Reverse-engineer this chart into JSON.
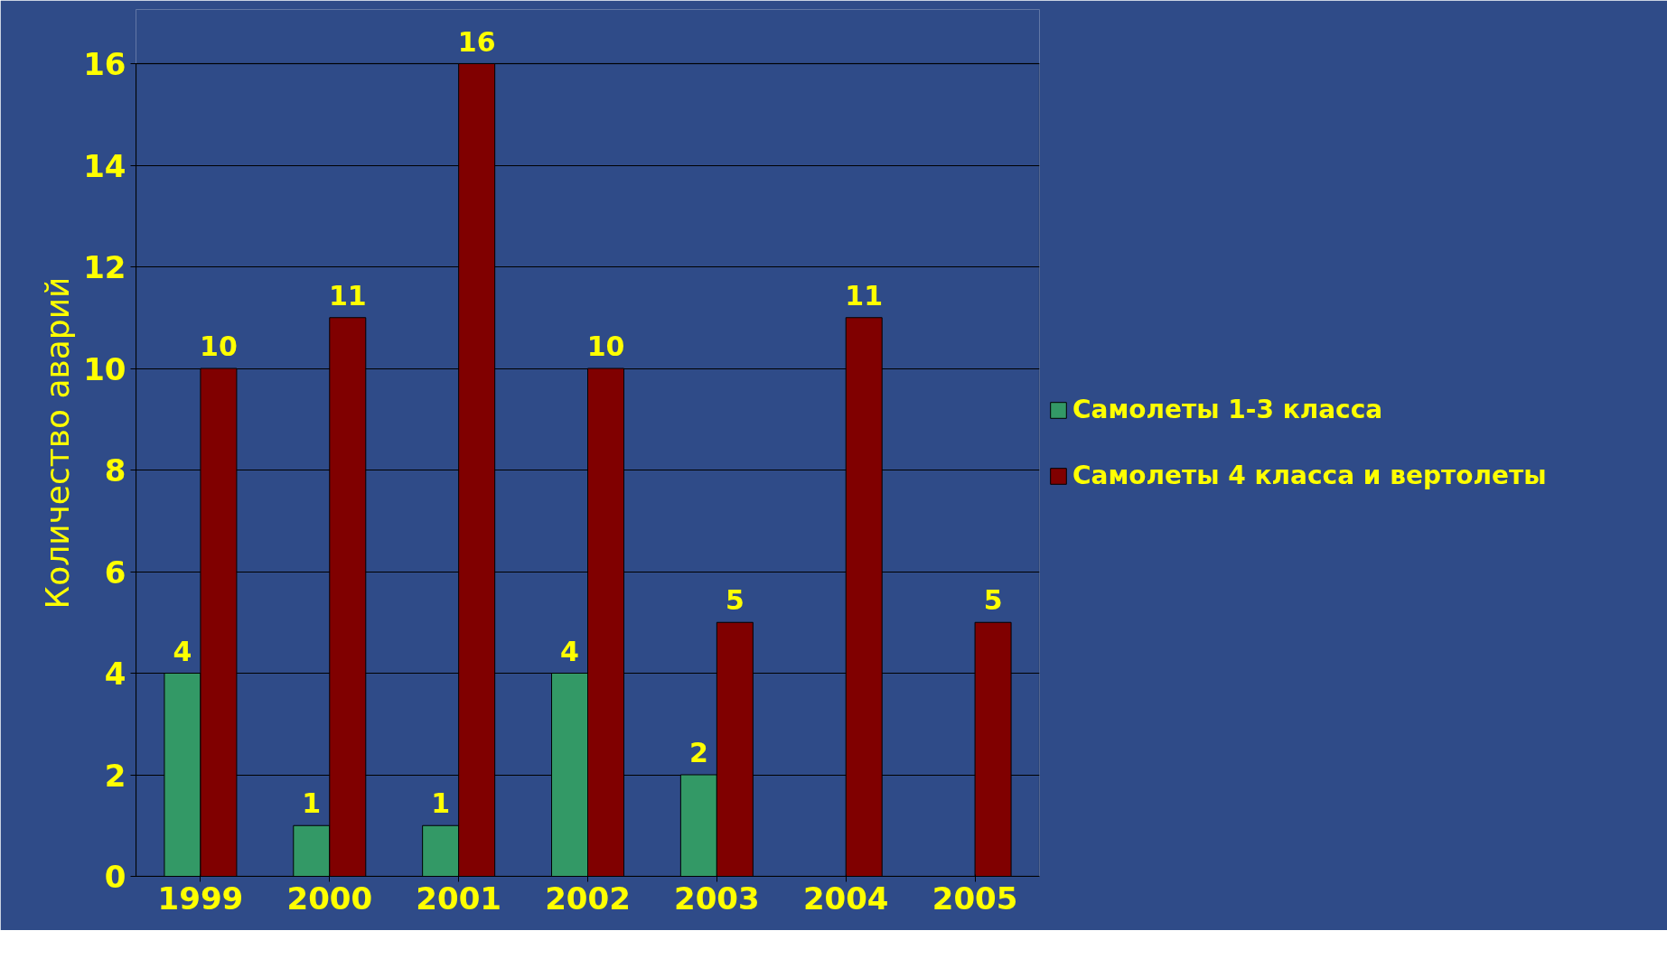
{
  "chart_data": {
    "type": "bar",
    "ylabel": "Количество аварий",
    "categories": [
      "1999",
      "2000",
      "2001",
      "2002",
      "2003",
      "2004",
      "2005"
    ],
    "series": [
      {
        "name": "Самолеты 1-3 класса",
        "color": "#339966",
        "values": [
          4,
          1,
          1,
          4,
          2,
          null,
          null
        ]
      },
      {
        "name": "Самолеты 4 класса и вертолеты",
        "color": "#800000",
        "values": [
          10,
          11,
          16,
          10,
          5,
          11,
          5
        ]
      }
    ],
    "ylim": [
      0,
      16
    ],
    "yticks": [
      0,
      2,
      4,
      6,
      8,
      10,
      12,
      14,
      16
    ],
    "grid": "y",
    "legend": "right",
    "data_labels": true
  }
}
